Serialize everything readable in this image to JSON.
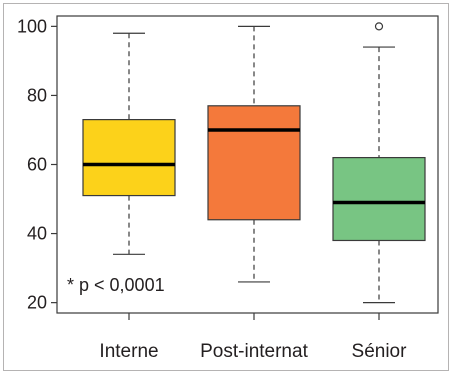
{
  "chart_data": {
    "type": "box",
    "categories": [
      "Interne",
      "Post-internat",
      "Sénior"
    ],
    "ylim": [
      17,
      103
    ],
    "yticks": [
      20,
      40,
      60,
      80,
      100
    ],
    "series": [
      {
        "category": "Interne",
        "whisker_low": 34,
        "q1": 51,
        "median": 60,
        "q3": 73,
        "whisker_high": 98,
        "outliers": [],
        "color": "#fcd21a"
      },
      {
        "category": "Post-internat",
        "whisker_low": 26,
        "q1": 44,
        "median": 70,
        "q3": 77,
        "whisker_high": 100,
        "outliers": [],
        "color": "#f4793b"
      },
      {
        "category": "Sénior",
        "whisker_low": 20,
        "q1": 38,
        "median": 49,
        "q3": 62,
        "whisker_high": 94,
        "outliers": [
          100
        ],
        "color": "#78c583"
      }
    ],
    "annotation": "* p < 0,0001",
    "grid": false
  }
}
